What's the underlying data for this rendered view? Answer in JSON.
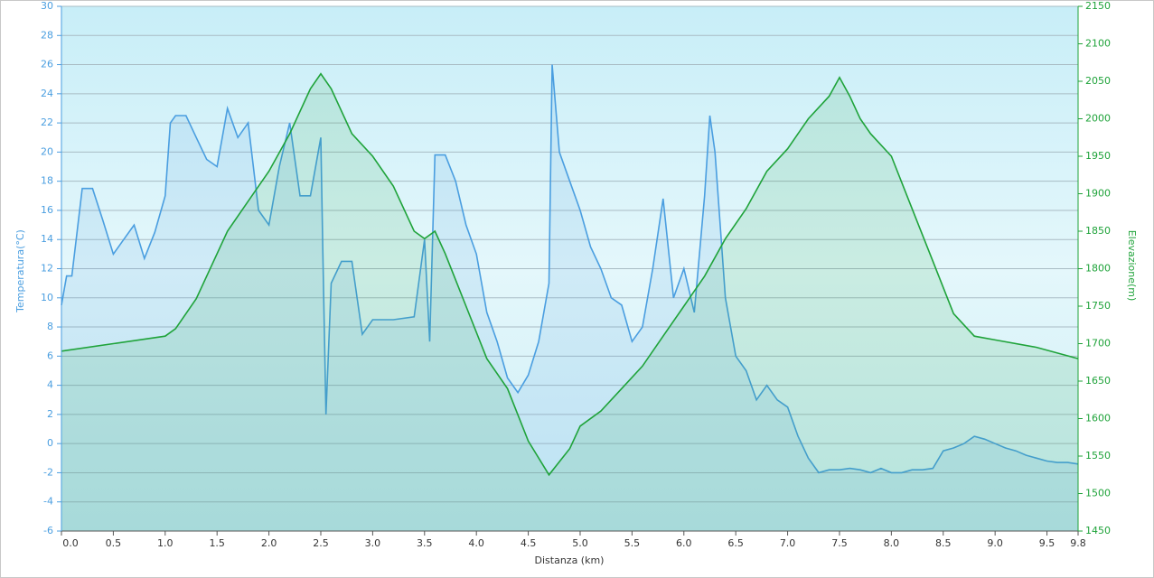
{
  "chart_data": {
    "type": "line",
    "xlabel": "Distanza  (km)",
    "ylabel": "Temperatura(°C)",
    "y2label": "Elevazione(m)",
    "xlim": [
      0,
      9.8
    ],
    "xticks": [
      {
        "value": 0,
        "label": "0.0"
      },
      0.5,
      {
        "value": 1,
        "label": "1.0"
      },
      1.5,
      {
        "value": 2,
        "label": "2.0"
      },
      2.5,
      {
        "value": 3,
        "label": "3.0"
      },
      3.5,
      {
        "value": 4,
        "label": "4.0"
      },
      4.5,
      {
        "value": 5,
        "label": "5.0"
      },
      5.5,
      {
        "value": 6,
        "label": "6.0"
      },
      6.5,
      {
        "value": 7,
        "label": "7.0"
      },
      7.5,
      {
        "value": 8,
        "label": "8.0"
      },
      8.5,
      {
        "value": 9,
        "label": "9.0"
      },
      9.5,
      9.8
    ],
    "ylim": [
      -6,
      30
    ],
    "yticks": [
      -6,
      -4,
      -2,
      0,
      2,
      4,
      6,
      8,
      10,
      12,
      14,
      16,
      18,
      20,
      22,
      24,
      26,
      28,
      30
    ],
    "y2lim": [
      1450,
      2150
    ],
    "y2ticks": [
      1450,
      1500,
      1550,
      1600,
      1650,
      1700,
      1750,
      1800,
      1850,
      1900,
      1950,
      2000,
      2050,
      2100,
      2150
    ],
    "grid": true,
    "series": [
      {
        "color": "#4a9ee0",
        "axis": "y",
        "x": [
          0,
          0.05,
          0.1,
          0.2,
          0.3,
          0.4,
          0.5,
          0.6,
          0.7,
          0.8,
          0.9,
          1.0,
          1.05,
          1.1,
          1.2,
          1.3,
          1.4,
          1.5,
          1.6,
          1.7,
          1.8,
          1.9,
          2.0,
          2.1,
          2.2,
          2.3,
          2.4,
          2.5,
          2.52,
          2.55,
          2.6,
          2.7,
          2.8,
          2.9,
          3.0,
          3.2,
          3.4,
          3.5,
          3.55,
          3.6,
          3.7,
          3.8,
          3.9,
          4.0,
          4.1,
          4.2,
          4.3,
          4.4,
          4.5,
          4.6,
          4.7,
          4.73,
          4.8,
          4.9,
          5.0,
          5.1,
          5.2,
          5.3,
          5.4,
          5.5,
          5.6,
          5.7,
          5.8,
          5.9,
          6.0,
          6.1,
          6.2,
          6.25,
          6.3,
          6.4,
          6.5,
          6.6,
          6.7,
          6.8,
          6.9,
          7.0,
          7.1,
          7.2,
          7.3,
          7.4,
          7.5,
          7.6,
          7.7,
          7.8,
          7.9,
          8.0,
          8.1,
          8.2,
          8.3,
          8.4,
          8.5,
          8.6,
          8.7,
          8.8,
          8.9,
          9.0,
          9.1,
          9.2,
          9.3,
          9.4,
          9.5,
          9.6,
          9.7,
          9.8
        ],
        "values": [
          9.5,
          11.5,
          11.5,
          17.5,
          17.5,
          15.3,
          13,
          14,
          15,
          12.7,
          14.5,
          17,
          22,
          22.5,
          22.5,
          21,
          19.5,
          19,
          23,
          21,
          22,
          16,
          15,
          19,
          22,
          17,
          17,
          21,
          13,
          2,
          11,
          12.5,
          12.5,
          7.5,
          8.5,
          8.5,
          8.7,
          14,
          7,
          19.8,
          19.8,
          18,
          15,
          13,
          9,
          7,
          4.5,
          3.5,
          4.7,
          7,
          11,
          26,
          20,
          18,
          16,
          13.5,
          12,
          10,
          9.5,
          7,
          8,
          12,
          16.8,
          10,
          12,
          9,
          17,
          22.5,
          20,
          10,
          6,
          5,
          3,
          4,
          3,
          2.5,
          0.5,
          -1,
          -2,
          -1.8,
          -1.8,
          -1.7,
          -1.8,
          -2,
          -1.7,
          -2,
          -2,
          -1.8,
          -1.8,
          -1.7,
          -0.5,
          -0.3,
          0,
          0.5,
          0.3,
          0,
          -0.3,
          -0.5,
          -0.8,
          -1,
          -1.2,
          -1.3,
          -1.3,
          -1.4
        ]
      },
      {
        "color": "#1fa33a",
        "axis": "y2",
        "x": [
          0,
          0.5,
          1.0,
          1.1,
          1.3,
          1.5,
          1.6,
          1.8,
          2.0,
          2.2,
          2.4,
          2.5,
          2.6,
          2.8,
          3.0,
          3.2,
          3.4,
          3.5,
          3.6,
          3.7,
          3.9,
          4.1,
          4.3,
          4.5,
          4.7,
          4.9,
          5.0,
          5.2,
          5.4,
          5.6,
          5.8,
          6.0,
          6.2,
          6.4,
          6.6,
          6.8,
          7.0,
          7.2,
          7.4,
          7.5,
          7.6,
          7.7,
          7.8,
          8.0,
          8.2,
          8.4,
          8.6,
          8.8,
          9.0,
          9.4,
          9.8
        ],
        "values": [
          1690,
          1700,
          1710,
          1720,
          1760,
          1820,
          1850,
          1890,
          1930,
          1980,
          2040,
          2060,
          2040,
          1980,
          1950,
          1910,
          1850,
          1840,
          1850,
          1820,
          1750,
          1680,
          1640,
          1570,
          1525,
          1560,
          1590,
          1610,
          1640,
          1670,
          1710,
          1750,
          1790,
          1840,
          1880,
          1930,
          1960,
          2000,
          2030,
          2055,
          2030,
          2000,
          1980,
          1950,
          1880,
          1810,
          1740,
          1710,
          1705,
          1695,
          1680
        ]
      }
    ]
  }
}
